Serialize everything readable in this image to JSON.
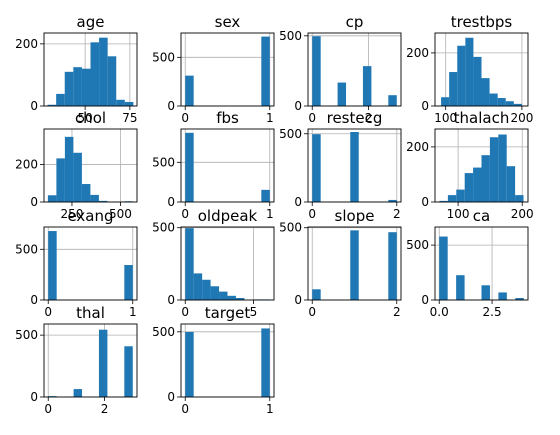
{
  "style": {
    "bar_color": "#1f77b4",
    "grid_color": "#b0b0b0",
    "background": "#ffffff"
  },
  "chart_data": [
    {
      "type": "bar",
      "title": "age",
      "grid": true,
      "xlim": [
        27,
        79
      ],
      "ylim": [
        0,
        235
      ],
      "xticks": [
        {
          "value": 50,
          "label": "50"
        },
        {
          "value": 75,
          "label": "75"
        }
      ],
      "yticks": [
        {
          "value": 0,
          "label": "0"
        },
        {
          "value": 200,
          "label": "200"
        }
      ],
      "bins": [
        [
          29,
          33.8,
          4
        ],
        [
          33.8,
          38.6,
          39
        ],
        [
          38.6,
          43.4,
          110
        ],
        [
          43.4,
          48.2,
          125
        ],
        [
          48.2,
          53,
          120
        ],
        [
          53,
          57.8,
          205
        ],
        [
          57.8,
          62.6,
          220
        ],
        [
          62.6,
          67.4,
          160
        ],
        [
          67.4,
          72.2,
          20
        ],
        [
          72.2,
          77,
          13
        ]
      ]
    },
    {
      "type": "bar",
      "title": "sex",
      "grid": true,
      "xlim": [
        -0.05,
        1.05
      ],
      "ylim": [
        0,
        750
      ],
      "xticks": [
        {
          "value": 0,
          "label": "0"
        },
        {
          "value": 1,
          "label": "1"
        }
      ],
      "yticks": [
        {
          "value": 0,
          "label": "0"
        },
        {
          "value": 500,
          "label": "500"
        }
      ],
      "bins": [
        [
          0,
          0.1,
          312
        ],
        [
          0.9,
          1,
          713
        ]
      ]
    },
    {
      "type": "bar",
      "title": "cp",
      "grid": true,
      "xlim": [
        -0.15,
        3.15
      ],
      "ylim": [
        0,
        520
      ],
      "xticks": [
        {
          "value": 0,
          "label": "0"
        },
        {
          "value": 2,
          "label": "2"
        }
      ],
      "yticks": [
        {
          "value": 0,
          "label": "0"
        },
        {
          "value": 500,
          "label": "500"
        }
      ],
      "bins": [
        [
          0,
          0.3,
          497
        ],
        [
          0.9,
          1.2,
          167
        ],
        [
          1.8,
          2.1,
          284
        ],
        [
          2.7,
          3,
          77
        ]
      ]
    },
    {
      "type": "bar",
      "title": "trestbps",
      "grid": true,
      "xlim": [
        86,
        208
      ],
      "ylim": [
        0,
        275
      ],
      "xticks": [
        {
          "value": 100,
          "label": "100"
        },
        {
          "value": 200,
          "label": "200"
        }
      ],
      "yticks": [
        {
          "value": 0,
          "label": "0"
        },
        {
          "value": 200,
          "label": "200"
        }
      ],
      "bins": [
        [
          94,
          104.6,
          33
        ],
        [
          104.6,
          115.2,
          128
        ],
        [
          115.2,
          125.8,
          227
        ],
        [
          125.8,
          136.4,
          257
        ],
        [
          136.4,
          147,
          185
        ],
        [
          147,
          157.6,
          105
        ],
        [
          157.6,
          168.2,
          47
        ],
        [
          168.2,
          178.8,
          30
        ],
        [
          178.8,
          189.4,
          18
        ],
        [
          189.4,
          200,
          8
        ]
      ]
    },
    {
      "type": "bar",
      "title": "chol",
      "grid": true,
      "xlim": [
        106,
        585
      ],
      "ylim": [
        0,
        390
      ],
      "xticks": [
        {
          "value": 250,
          "label": "250"
        },
        {
          "value": 500,
          "label": "500"
        }
      ],
      "yticks": [
        {
          "value": 0,
          "label": "0"
        },
        {
          "value": 200,
          "label": "200"
        }
      ],
      "bins": [
        [
          126,
          169.8,
          36
        ],
        [
          169.8,
          213.6,
          233
        ],
        [
          213.6,
          257.4,
          348
        ],
        [
          257.4,
          301.2,
          263
        ],
        [
          301.2,
          345,
          96
        ],
        [
          345,
          388.8,
          38
        ],
        [
          388.8,
          432.6,
          6
        ],
        [
          432.6,
          476.4,
          0
        ],
        [
          476.4,
          520.2,
          0
        ],
        [
          520.2,
          564,
          4
        ]
      ]
    },
    {
      "type": "bar",
      "title": "fbs",
      "grid": true,
      "xlim": [
        -0.05,
        1.05
      ],
      "ylim": [
        0,
        920
      ],
      "xticks": [
        {
          "value": 0,
          "label": "0"
        },
        {
          "value": 1,
          "label": "1"
        }
      ],
      "yticks": [
        {
          "value": 0,
          "label": "0"
        },
        {
          "value": 500,
          "label": "500"
        }
      ],
      "bins": [
        [
          0,
          0.1,
          872
        ],
        [
          0.9,
          1,
          153
        ]
      ]
    },
    {
      "type": "bar",
      "title": "restecg",
      "grid": true,
      "xlim": [
        -0.1,
        2.1
      ],
      "ylim": [
        0,
        535
      ],
      "xticks": [
        {
          "value": 0,
          "label": "0"
        },
        {
          "value": 2,
          "label": "2"
        }
      ],
      "yticks": [
        {
          "value": 0,
          "label": "0"
        },
        {
          "value": 500,
          "label": "500"
        }
      ],
      "bins": [
        [
          0,
          0.2,
          497
        ],
        [
          0.9,
          1.1,
          513
        ],
        [
          1.8,
          2,
          15
        ]
      ]
    },
    {
      "type": "bar",
      "title": "thalach",
      "grid": true,
      "xlim": [
        64,
        209
      ],
      "ylim": [
        0,
        265
      ],
      "xticks": [
        {
          "value": 100,
          "label": "100"
        },
        {
          "value": 200,
          "label": "200"
        }
      ],
      "yticks": [
        {
          "value": 0,
          "label": "0"
        },
        {
          "value": 200,
          "label": "200"
        }
      ],
      "bins": [
        [
          71,
          84.1,
          4
        ],
        [
          84.1,
          97.2,
          25
        ],
        [
          97.2,
          110.3,
          45
        ],
        [
          110.3,
          123.4,
          105
        ],
        [
          123.4,
          136.5,
          125
        ],
        [
          136.5,
          149.6,
          170
        ],
        [
          149.6,
          162.7,
          235
        ],
        [
          162.7,
          175.8,
          245
        ],
        [
          175.8,
          188.9,
          130
        ],
        [
          188.9,
          202,
          25
        ]
      ]
    },
    {
      "type": "bar",
      "title": "exang",
      "grid": true,
      "xlim": [
        -0.05,
        1.05
      ],
      "ylim": [
        0,
        720
      ],
      "xticks": [
        {
          "value": 0,
          "label": "0"
        },
        {
          "value": 1,
          "label": "1"
        }
      ],
      "yticks": [
        {
          "value": 0,
          "label": "0"
        },
        {
          "value": 500,
          "label": "500"
        }
      ],
      "bins": [
        [
          0,
          0.1,
          680
        ],
        [
          0.9,
          1,
          345
        ]
      ]
    },
    {
      "type": "bar",
      "title": "oldpeak",
      "grid": true,
      "xlim": [
        -0.31,
        6.51
      ],
      "ylim": [
        0,
        505
      ],
      "xticks": [
        {
          "value": 0,
          "label": "0"
        },
        {
          "value": 5,
          "label": "5"
        }
      ],
      "yticks": [
        {
          "value": 0,
          "label": "0"
        },
        {
          "value": 500,
          "label": "500"
        }
      ],
      "bins": [
        [
          0,
          0.62,
          497
        ],
        [
          0.62,
          1.24,
          184
        ],
        [
          1.24,
          1.86,
          140
        ],
        [
          1.86,
          2.48,
          95
        ],
        [
          2.48,
          3.1,
          58
        ],
        [
          3.1,
          3.72,
          29
        ],
        [
          3.72,
          4.34,
          14
        ],
        [
          4.34,
          4.96,
          0
        ],
        [
          4.96,
          5.58,
          4
        ],
        [
          5.58,
          6.2,
          4
        ]
      ]
    },
    {
      "type": "bar",
      "title": "slope",
      "grid": true,
      "xlim": [
        -0.1,
        2.1
      ],
      "ylim": [
        0,
        505
      ],
      "xticks": [
        {
          "value": 0,
          "label": "0"
        },
        {
          "value": 2,
          "label": "2"
        }
      ],
      "yticks": [
        {
          "value": 0,
          "label": "0"
        },
        {
          "value": 500,
          "label": "500"
        }
      ],
      "bins": [
        [
          0,
          0.2,
          74
        ],
        [
          0.9,
          1.1,
          482
        ],
        [
          1.8,
          2,
          469
        ]
      ]
    },
    {
      "type": "bar",
      "title": "ca",
      "grid": true,
      "xlim": [
        -0.2,
        4.2
      ],
      "ylim": [
        0,
        665
      ],
      "xticks": [
        {
          "value": 0,
          "label": "0.0"
        },
        {
          "value": 2.5,
          "label": "2.5"
        }
      ],
      "yticks": [
        {
          "value": 0,
          "label": "0"
        },
        {
          "value": 500,
          "label": "500"
        }
      ],
      "bins": [
        [
          0,
          0.4,
          578
        ],
        [
          0.8,
          1.2,
          226
        ],
        [
          1.6,
          2,
          0
        ],
        [
          2,
          2.4,
          134
        ],
        [
          2.8,
          3.2,
          69
        ],
        [
          3.6,
          4,
          18
        ]
      ]
    },
    {
      "type": "bar",
      "title": "thal",
      "grid": true,
      "xlim": [
        -0.15,
        3.15
      ],
      "ylim": [
        0,
        590
      ],
      "xticks": [
        {
          "value": 0,
          "label": "0"
        },
        {
          "value": 2,
          "label": "2"
        }
      ],
      "yticks": [
        {
          "value": 0,
          "label": "0"
        },
        {
          "value": 500,
          "label": "500"
        }
      ],
      "bins": [
        [
          0,
          0.3,
          7
        ],
        [
          0.9,
          1.2,
          64
        ],
        [
          1.8,
          2.1,
          544
        ],
        [
          2.7,
          3,
          410
        ]
      ]
    },
    {
      "type": "bar",
      "title": "target",
      "grid": true,
      "xlim": [
        -0.05,
        1.05
      ],
      "ylim": [
        0,
        560
      ],
      "xticks": [
        {
          "value": 0,
          "label": "0"
        },
        {
          "value": 1,
          "label": "1"
        }
      ],
      "yticks": [
        {
          "value": 0,
          "label": "0"
        },
        {
          "value": 500,
          "label": "500"
        }
      ],
      "bins": [
        [
          0,
          0.1,
          499
        ],
        [
          0.9,
          1,
          526
        ]
      ]
    }
  ]
}
